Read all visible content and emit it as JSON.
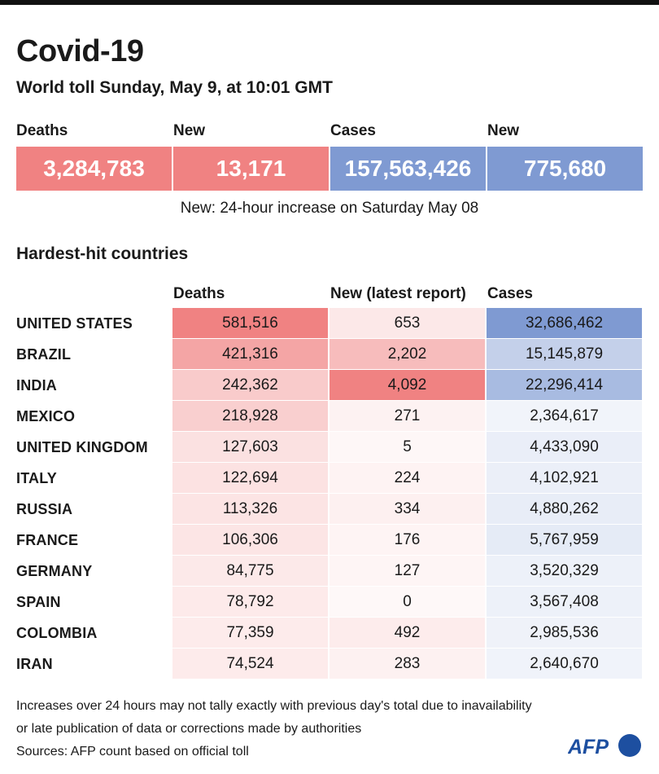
{
  "title": "Covid-19",
  "subtitle": "World toll Sunday, May 9, at 10:01 GMT",
  "kpis": [
    {
      "label": "Deaths",
      "value": "3,284,783",
      "color": "#f08282"
    },
    {
      "label": "New",
      "value": "13,171",
      "color": "#f08282"
    },
    {
      "label": "Cases",
      "value": "157,563,426",
      "color": "#7f9ad2"
    },
    {
      "label": "New",
      "value": "775,680",
      "color": "#7f9ad2"
    }
  ],
  "note": "New: 24-hour increase on Saturday May 08",
  "section_title": "Hardest-hit countries",
  "chart_data": {
    "type": "table",
    "title": "Hardest-hit countries",
    "columns": [
      "Deaths",
      "New (latest report)",
      "Cases"
    ],
    "rows": [
      {
        "country": "UNITED STATES",
        "deaths": "581,516",
        "new": "653",
        "cases": "32,686,462"
      },
      {
        "country": "BRAZIL",
        "deaths": "421,316",
        "new": "2,202",
        "cases": "15,145,879"
      },
      {
        "country": "INDIA",
        "deaths": "242,362",
        "new": "4,092",
        "cases": "22,296,414"
      },
      {
        "country": "MEXICO",
        "deaths": "218,928",
        "new": "271",
        "cases": "2,364,617"
      },
      {
        "country": "UNITED KINGDOM",
        "deaths": "127,603",
        "new": "5",
        "cases": "4,433,090"
      },
      {
        "country": "ITALY",
        "deaths": "122,694",
        "new": "224",
        "cases": "4,102,921"
      },
      {
        "country": "RUSSIA",
        "deaths": "113,326",
        "new": "334",
        "cases": "4,880,262"
      },
      {
        "country": "FRANCE",
        "deaths": "106,306",
        "new": "176",
        "cases": "5,767,959"
      },
      {
        "country": "GERMANY",
        "deaths": "84,775",
        "new": "127",
        "cases": "3,520,329"
      },
      {
        "country": "SPAIN",
        "deaths": "78,792",
        "new": "0",
        "cases": "3,567,408"
      },
      {
        "country": "COLOMBIA",
        "deaths": "77,359",
        "new": "492",
        "cases": "2,985,536"
      },
      {
        "country": "IRAN",
        "deaths": "74,524",
        "new": "283",
        "cases": "2,640,670"
      }
    ],
    "colors": {
      "deaths": "#f08282",
      "cases": "#7f9ad2"
    }
  },
  "footnote1": "Increases over 24 hours may not tally exactly with previous day's total due to inavailability",
  "footnote2": "or late publication of data or corrections made by authorities",
  "sources": "Sources: AFP count based on official toll",
  "logo": {
    "text": "AFP",
    "color": "#1d4fa0"
  }
}
